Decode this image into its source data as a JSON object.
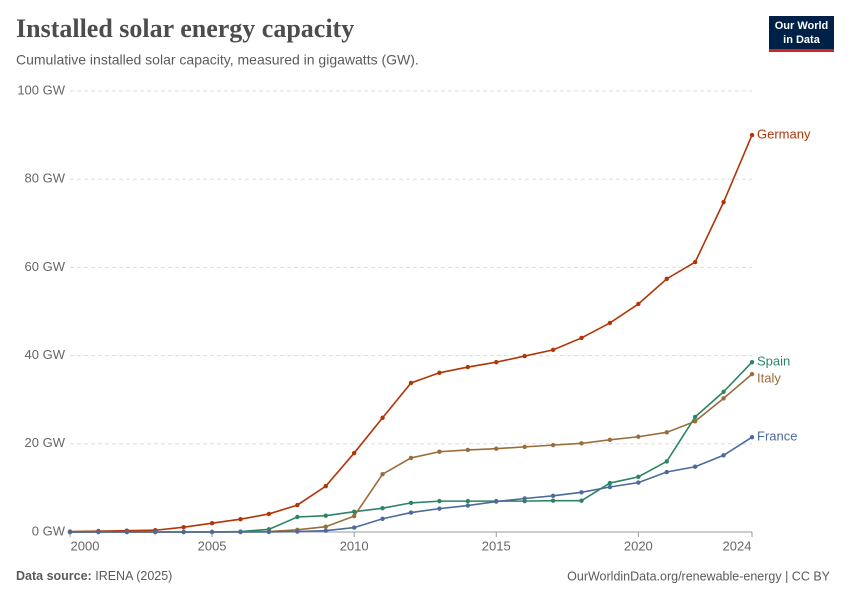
{
  "chart_data": {
    "type": "line",
    "title": "Installed solar energy capacity",
    "subtitle": "Cumulative installed solar capacity, measured in gigawatts (GW).",
    "logo": [
      "Our World",
      "in Data"
    ],
    "source_label": "Data source:",
    "source": "IRENA (2025)",
    "credit": "OurWorldinData.org/renewable-energy | CC BY",
    "x": [
      2000,
      2001,
      2002,
      2003,
      2004,
      2005,
      2006,
      2007,
      2008,
      2009,
      2010,
      2011,
      2012,
      2013,
      2014,
      2015,
      2016,
      2017,
      2018,
      2019,
      2020,
      2021,
      2022,
      2023,
      2024
    ],
    "xlim": [
      2000,
      2024
    ],
    "xticks": [
      2000,
      2005,
      2010,
      2015,
      2020,
      2024
    ],
    "ylim": [
      0,
      100
    ],
    "yticks": [
      {
        "value": 0,
        "label": "0 GW"
      },
      {
        "value": 20,
        "label": "20 GW"
      },
      {
        "value": 40,
        "label": "40 GW"
      },
      {
        "value": 60,
        "label": "60 GW"
      },
      {
        "value": 80,
        "label": "80 GW"
      },
      {
        "value": 100,
        "label": "100 GW"
      }
    ],
    "grid": true,
    "series": [
      {
        "name": "Germany",
        "color": "#b13507",
        "values": [
          0.1,
          0.2,
          0.3,
          0.4,
          1.1,
          2.0,
          2.9,
          4.1,
          6.1,
          10.4,
          17.9,
          25.9,
          33.8,
          36.1,
          37.4,
          38.5,
          39.9,
          41.3,
          44.0,
          47.4,
          51.7,
          57.4,
          61.2,
          74.8,
          90.0
        ]
      },
      {
        "name": "Spain",
        "color": "#2c8465",
        "values": [
          0,
          0,
          0,
          0,
          0,
          0,
          0.1,
          0.6,
          3.4,
          3.7,
          4.6,
          5.4,
          6.6,
          7.0,
          7.0,
          7.0,
          7.0,
          7.1,
          7.1,
          11.1,
          12.5,
          16.0,
          26.1,
          31.8,
          38.5
        ]
      },
      {
        "name": "Italy",
        "color": "#996d39",
        "values": [
          0,
          0,
          0,
          0,
          0,
          0,
          0,
          0.1,
          0.5,
          1.2,
          3.6,
          13.1,
          16.8,
          18.2,
          18.6,
          18.9,
          19.3,
          19.7,
          20.1,
          20.9,
          21.6,
          22.6,
          25.1,
          30.3,
          35.8
        ]
      },
      {
        "name": "France",
        "color": "#4c6a9c",
        "values": [
          0,
          0,
          0,
          0,
          0,
          0,
          0,
          0,
          0.1,
          0.3,
          1.0,
          3.0,
          4.4,
          5.3,
          6.0,
          6.9,
          7.6,
          8.2,
          9.0,
          10.2,
          11.2,
          13.6,
          14.8,
          17.4,
          21.5
        ]
      }
    ]
  }
}
